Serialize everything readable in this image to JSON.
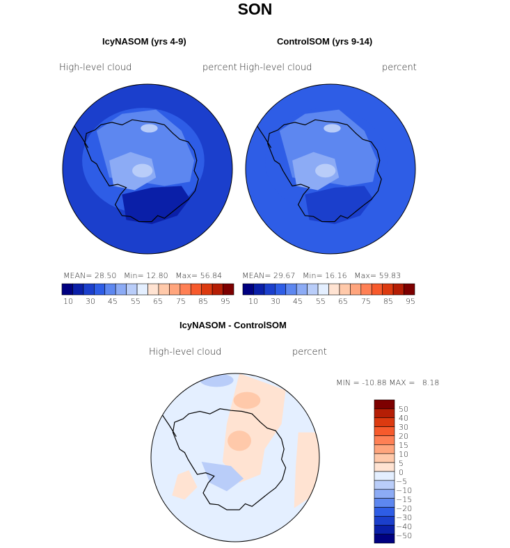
{
  "title": "SON",
  "colors": {
    "scale_absolute": [
      "#000080",
      "#0a1fa8",
      "#1b3fcc",
      "#2e5de6",
      "#5d87f0",
      "#8cabf5",
      "#b9cdf9",
      "#e4efff",
      "#ffe3d2",
      "#ffc9aa",
      "#ffa57d",
      "#ff8055",
      "#f75a2c",
      "#dc3a10",
      "#b51e05",
      "#7d0000"
    ],
    "scale_diff": [
      "#7d0000",
      "#b51e05",
      "#dc3a10",
      "#f75a2c",
      "#ff8055",
      "#ffa57d",
      "#ffc9aa",
      "#ffe3d2",
      "#ffffff",
      "#e4efff",
      "#b9cdf9",
      "#8cabf5",
      "#5d87f0",
      "#2e5de6",
      "#1b3fcc",
      "#0a1fa8",
      "#000080"
    ],
    "coast": "#000000"
  },
  "chart_data": [
    {
      "type": "heatmap",
      "title": "IcyNASOM (yrs 4-9)",
      "variable": "High-level cloud",
      "units": "percent",
      "projection": "south-polar-stereographic",
      "stats": {
        "mean_label": "MEAN=",
        "mean": "28.50",
        "min_label": "Min=",
        "min": "12.80",
        "max_label": "Max=",
        "max": "56.84"
      },
      "colorbar_ticks": [
        "10",
        "30",
        "45",
        "55",
        "65",
        "75",
        "85",
        "95"
      ],
      "field_levels": {
        "background": 2,
        "ring": 3,
        "interior_low": 4,
        "interior_high": 5,
        "peak": 6,
        "dry_sector": 1
      }
    },
    {
      "type": "heatmap",
      "title": "ControlSOM (yrs 9-14)",
      "variable": "High-level cloud",
      "units": "percent",
      "projection": "south-polar-stereographic",
      "stats": {
        "mean_label": "MEAN=",
        "mean": "29.67",
        "min_label": "Min=",
        "min": "16.16",
        "max_label": "Max=",
        "max": "59.83"
      },
      "colorbar_ticks": [
        "10",
        "30",
        "45",
        "55",
        "65",
        "75",
        "85",
        "95"
      ],
      "field_levels": {
        "background": 3,
        "ring": 3,
        "interior_low": 4,
        "interior_high": 5,
        "peak": 6,
        "dry_sector": 2
      }
    },
    {
      "type": "heatmap",
      "title": "IcyNASOM - ControlSOM",
      "variable": "High-level cloud",
      "units": "percent",
      "projection": "south-polar-stereographic",
      "stats": {
        "min_label": "MIN =",
        "min": "-10.88",
        "max_label": "MAX =",
        "max": "8.18"
      },
      "colorbar_ticks": [
        "50",
        "40",
        "30",
        "20",
        "15",
        "10",
        "5",
        "0",
        "−5",
        "−10",
        "−15",
        "−20",
        "−30",
        "−40",
        "−50"
      ]
    }
  ]
}
